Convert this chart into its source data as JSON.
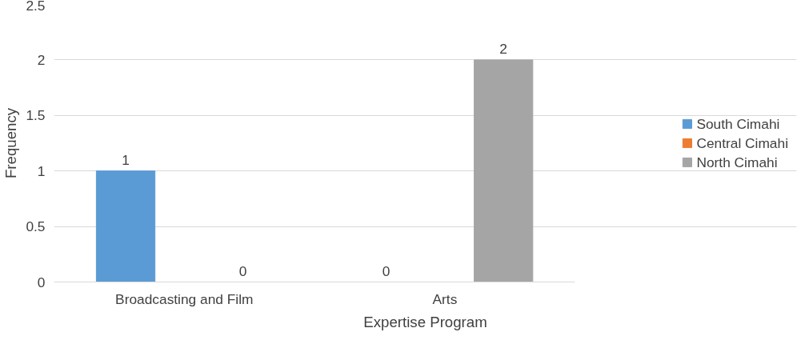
{
  "chart_data": {
    "type": "bar",
    "xlabel": "Expertise Program",
    "ylabel": "Frequency",
    "categories": [
      "Broadcasting and Film",
      "Arts"
    ],
    "series": [
      {
        "name": "South Cimahi",
        "color": "#5b9bd5",
        "values": [
          1,
          0
        ]
      },
      {
        "name": "Central Cimahi",
        "color": "#ed7d31",
        "values": [
          null,
          null
        ]
      },
      {
        "name": "North Cimahi",
        "color": "#a5a5a5",
        "values": [
          0,
          2
        ]
      }
    ],
    "ylim": [
      0,
      2.5
    ],
    "yticks": [
      0,
      0.5,
      1,
      1.5,
      2,
      2.5
    ],
    "grid": "y",
    "legend": "right",
    "data_labels": true
  }
}
